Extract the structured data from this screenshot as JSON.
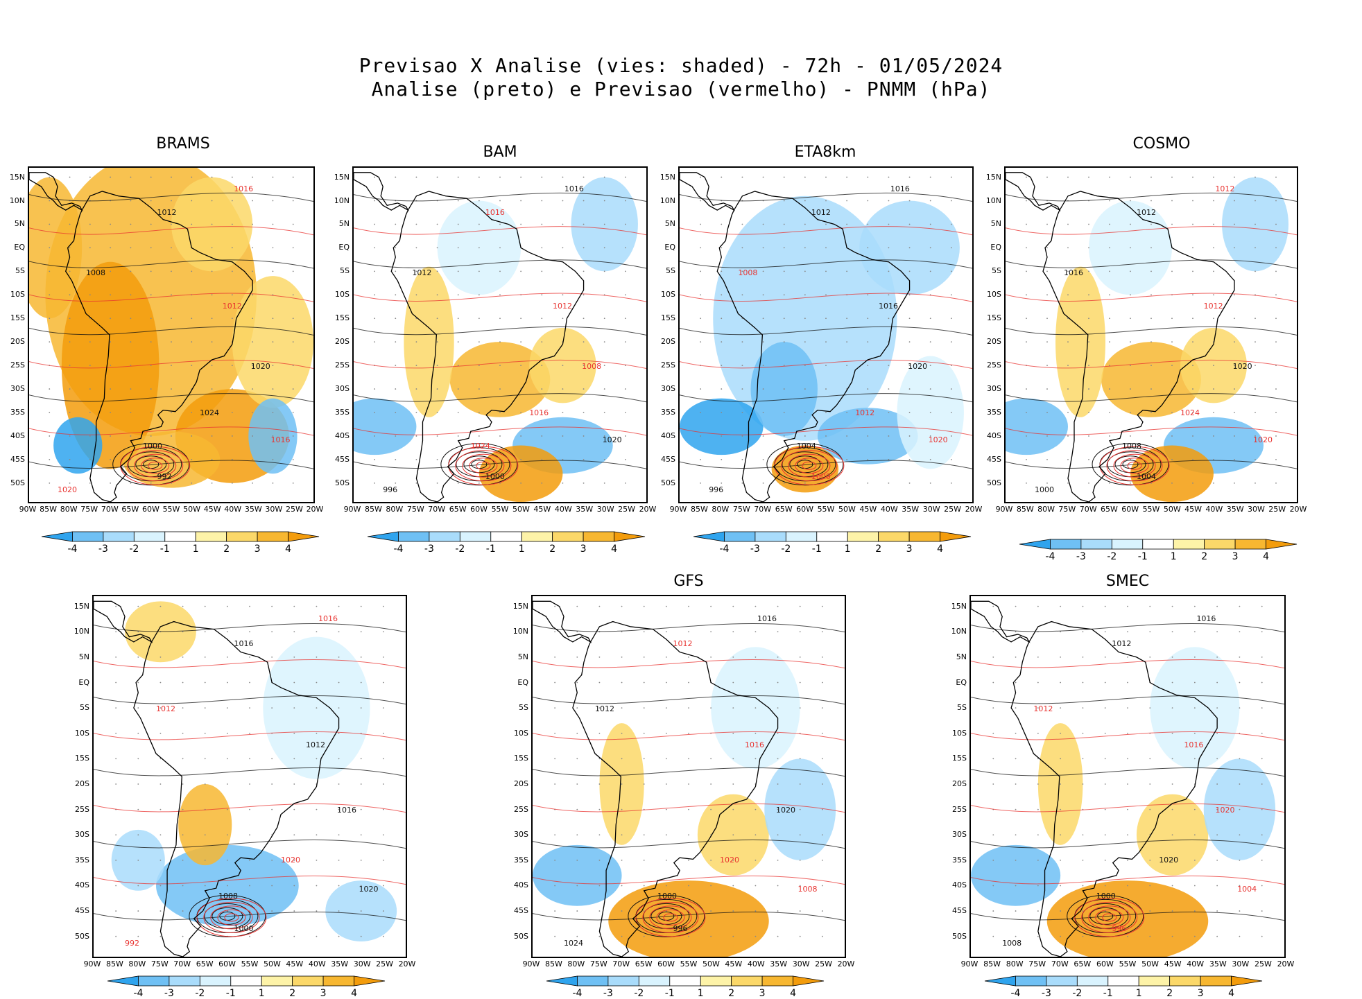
{
  "header": {
    "line1": "Previsao X Analise (vies: shaded) - 72h - 01/05/2024",
    "line2": "Analise (preto) e Previsao (vermelho) - PNMM (hPa)"
  },
  "latitude_labels": [
    "15N",
    "10N",
    "5N",
    "EQ",
    "5S",
    "10S",
    "15S",
    "20S",
    "25S",
    "30S",
    "35S",
    "40S",
    "45S",
    "50S"
  ],
  "longitude_labels": [
    "90W",
    "85W",
    "80W",
    "75W",
    "70W",
    "65W",
    "60W",
    "55W",
    "50W",
    "45W",
    "40W",
    "35W",
    "30W",
    "25W",
    "20W"
  ],
  "colorbar": {
    "labels": [
      "-4",
      "-3",
      "-2",
      "-1",
      "1",
      "2",
      "3",
      "4"
    ],
    "colors": [
      "#2fa4ee",
      "#6fc0f4",
      "#a9dcfb",
      "#d9f3fe",
      "#ffffff",
      "#fdf3a8",
      "#fbd869",
      "#f7b731",
      "#f39c0c"
    ]
  },
  "colors": {
    "analysis": "#111111",
    "forecast": "#e8322f",
    "land_outline": "#000000"
  },
  "panels": [
    {
      "name": "BRAMS",
      "bias": "warm",
      "isobars": [
        {
          "v": "1016",
          "c": "red"
        },
        {
          "v": "1012",
          "c": "black"
        },
        {
          "v": "1008",
          "c": "black"
        },
        {
          "v": "1012",
          "c": "red"
        },
        {
          "v": "1020",
          "c": "black"
        },
        {
          "v": "1024",
          "c": "black"
        },
        {
          "v": "1016",
          "c": "red"
        },
        {
          "v": "1000",
          "c": "black"
        },
        {
          "v": "992",
          "c": "black"
        },
        {
          "v": "1020",
          "c": "red"
        }
      ]
    },
    {
      "name": "BAM",
      "bias": "mixed",
      "isobars": [
        {
          "v": "1016",
          "c": "black"
        },
        {
          "v": "1016",
          "c": "red"
        },
        {
          "v": "1012",
          "c": "black"
        },
        {
          "v": "1012",
          "c": "red"
        },
        {
          "v": "1008",
          "c": "red"
        },
        {
          "v": "1016",
          "c": "red"
        },
        {
          "v": "1020",
          "c": "black"
        },
        {
          "v": "1024",
          "c": "red"
        },
        {
          "v": "1000",
          "c": "black"
        },
        {
          "v": "996",
          "c": "black"
        }
      ]
    },
    {
      "name": "ETA8km",
      "bias": "cold",
      "isobars": [
        {
          "v": "1016",
          "c": "black"
        },
        {
          "v": "1012",
          "c": "black"
        },
        {
          "v": "1008",
          "c": "red"
        },
        {
          "v": "1016",
          "c": "black"
        },
        {
          "v": "1020",
          "c": "black"
        },
        {
          "v": "1012",
          "c": "red"
        },
        {
          "v": "1020",
          "c": "red"
        },
        {
          "v": "1004",
          "c": "black"
        },
        {
          "v": "1000",
          "c": "red"
        },
        {
          "v": "996",
          "c": "black"
        }
      ]
    },
    {
      "name": "COSMO",
      "bias": "mixed",
      "isobars": [
        {
          "v": "1012",
          "c": "red"
        },
        {
          "v": "1012",
          "c": "black"
        },
        {
          "v": "1016",
          "c": "black"
        },
        {
          "v": "1012",
          "c": "red"
        },
        {
          "v": "1020",
          "c": "black"
        },
        {
          "v": "1024",
          "c": "red"
        },
        {
          "v": "1020",
          "c": "red"
        },
        {
          "v": "1008",
          "c": "black"
        },
        {
          "v": "1004",
          "c": "black"
        },
        {
          "v": "1000",
          "c": "black"
        }
      ]
    },
    {
      "name": "",
      "bias": "mixed-cold",
      "isobars": [
        {
          "v": "1016",
          "c": "red"
        },
        {
          "v": "1016",
          "c": "black"
        },
        {
          "v": "1012",
          "c": "red"
        },
        {
          "v": "1012",
          "c": "black"
        },
        {
          "v": "1016",
          "c": "black"
        },
        {
          "v": "1020",
          "c": "red"
        },
        {
          "v": "1020",
          "c": "black"
        },
        {
          "v": "1008",
          "c": "black"
        },
        {
          "v": "1000",
          "c": "black"
        },
        {
          "v": "992",
          "c": "red"
        }
      ]
    },
    {
      "name": "GFS",
      "bias": "mixed-warm",
      "isobars": [
        {
          "v": "1016",
          "c": "black"
        },
        {
          "v": "1012",
          "c": "red"
        },
        {
          "v": "1012",
          "c": "black"
        },
        {
          "v": "1016",
          "c": "red"
        },
        {
          "v": "1020",
          "c": "black"
        },
        {
          "v": "1020",
          "c": "red"
        },
        {
          "v": "1008",
          "c": "red"
        },
        {
          "v": "1000",
          "c": "black"
        },
        {
          "v": "996",
          "c": "black"
        },
        {
          "v": "1024",
          "c": "black"
        }
      ]
    },
    {
      "name": "SMEC",
      "bias": "mixed-warm",
      "isobars": [
        {
          "v": "1016",
          "c": "black"
        },
        {
          "v": "1012",
          "c": "black"
        },
        {
          "v": "1012",
          "c": "red"
        },
        {
          "v": "1016",
          "c": "red"
        },
        {
          "v": "1020",
          "c": "red"
        },
        {
          "v": "1020",
          "c": "black"
        },
        {
          "v": "1004",
          "c": "red"
        },
        {
          "v": "1000",
          "c": "black"
        },
        {
          "v": "996",
          "c": "red"
        },
        {
          "v": "1008",
          "c": "black"
        }
      ]
    }
  ]
}
